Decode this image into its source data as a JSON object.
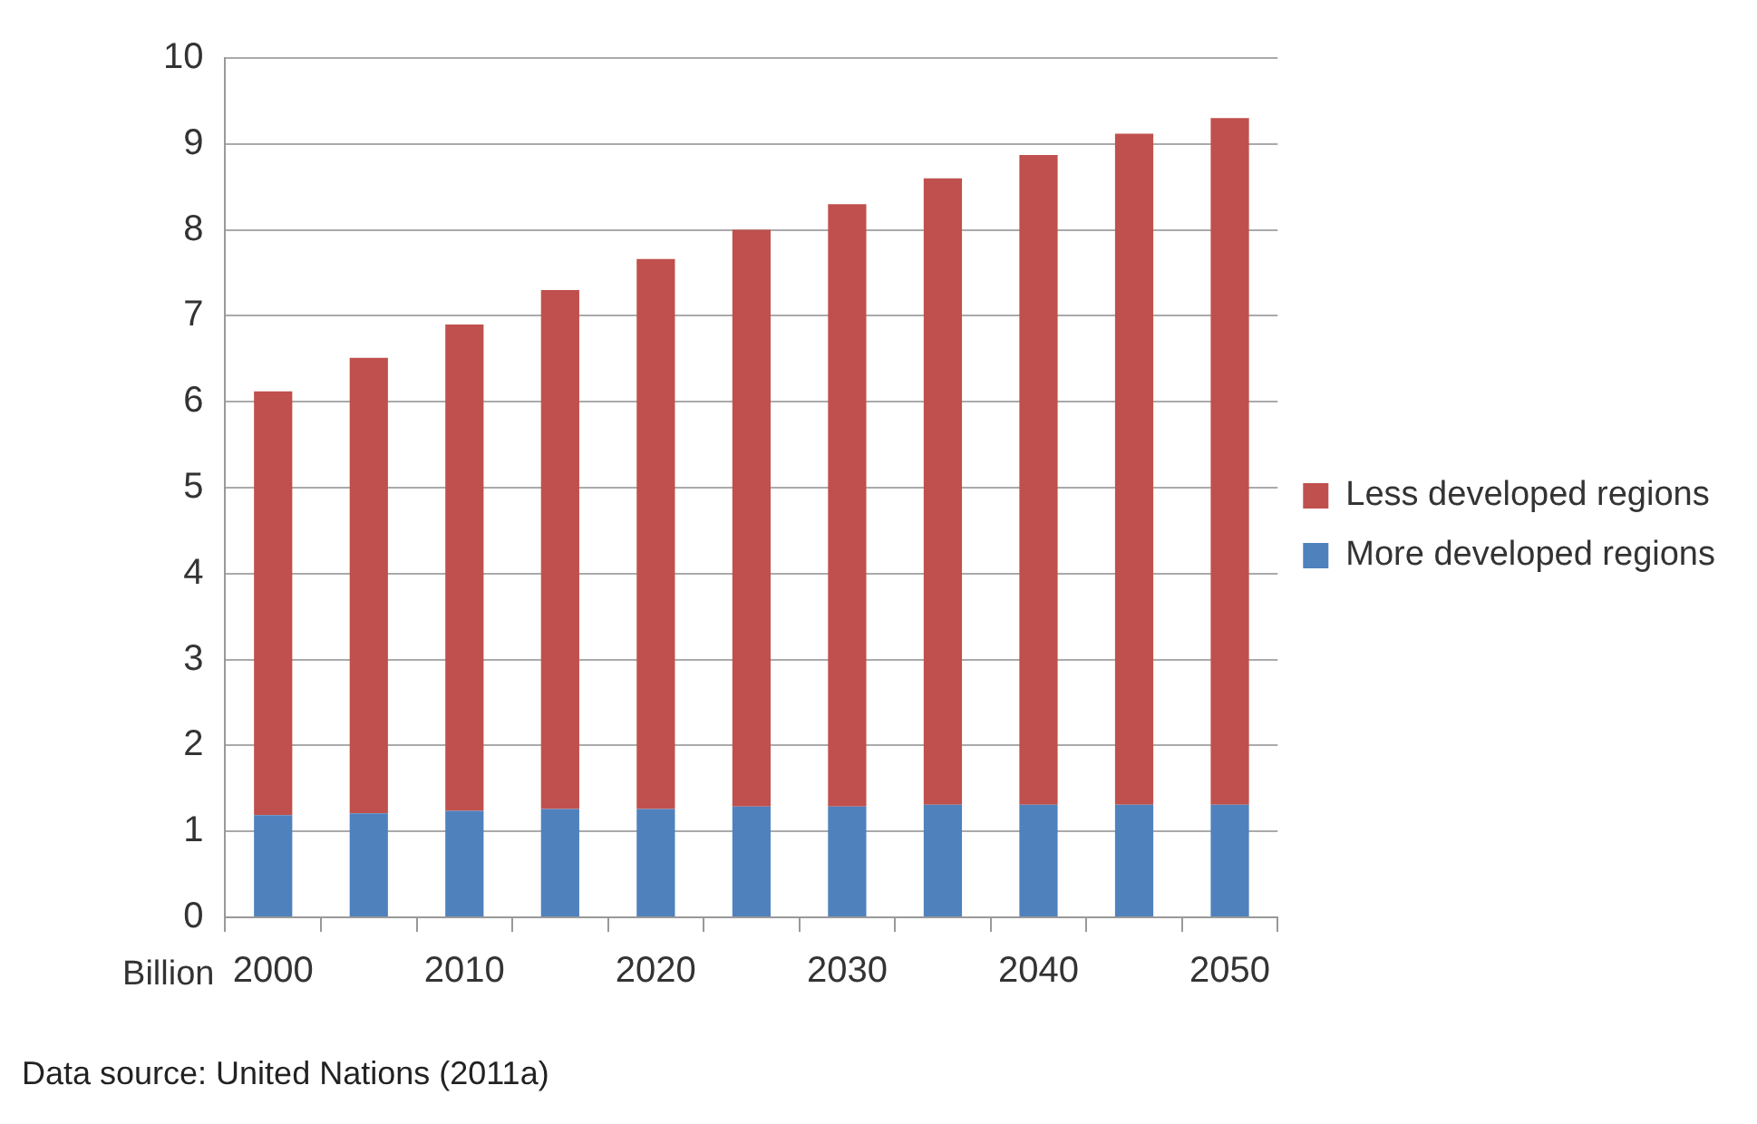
{
  "chart_data": {
    "type": "bar",
    "stacked": true,
    "ylabel": "Billion",
    "categories": [
      "2000",
      null,
      "2010",
      null,
      "2020",
      null,
      "2030",
      null,
      "2040",
      null,
      "2050"
    ],
    "series": [
      {
        "name": "More developed regions",
        "color": "#4f81bd",
        "values": [
          1.19,
          1.21,
          1.24,
          1.26,
          1.26,
          1.29,
          1.29,
          1.31,
          1.31,
          1.31,
          1.31
        ]
      },
      {
        "name": "Less developed regions",
        "color": "#c0504d",
        "values": [
          4.93,
          5.3,
          5.66,
          6.04,
          6.4,
          6.71,
          7.01,
          7.29,
          7.56,
          7.81,
          7.99
        ]
      }
    ],
    "ylim": [
      0,
      10
    ],
    "yticks": [
      0,
      1,
      2,
      3,
      4,
      5,
      6,
      7,
      8,
      9,
      10
    ],
    "grid": "y",
    "legend": "right",
    "annotations": [
      "Data source: United Nations (2011a)"
    ]
  }
}
